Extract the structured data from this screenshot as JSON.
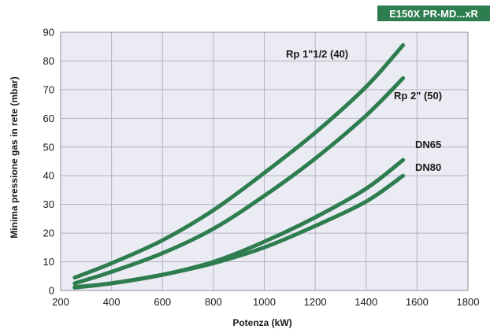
{
  "badge": {
    "text": "E150X PR-MD...xR",
    "color": "#2e7d4f"
  },
  "chart_data": {
    "type": "line",
    "title": "",
    "xlabel": "Potenza (kW)",
    "ylabel": "Minima pressione gas in rete (mbar)",
    "xlim": [
      200,
      1800
    ],
    "ylim": [
      0,
      90
    ],
    "xticks": [
      200,
      400,
      600,
      800,
      1000,
      1200,
      1400,
      1600,
      1800
    ],
    "yticks": [
      0,
      10,
      20,
      30,
      40,
      50,
      60,
      70,
      80,
      90
    ],
    "grid": true,
    "line_color": "#2e7d4f",
    "series": [
      {
        "name": "Rp 1\"1/2 (40)",
        "x": [
          255,
          400,
          600,
          800,
          1000,
          1200,
          1400,
          1545
        ],
        "y": [
          4.5,
          9.5,
          17.5,
          28,
          41,
          55,
          71,
          85.5
        ]
      },
      {
        "name": "Rp 2\" (50)",
        "x": [
          255,
          400,
          600,
          800,
          1000,
          1200,
          1400,
          1545
        ],
        "y": [
          2.5,
          6.5,
          13,
          21.5,
          33,
          46,
          61,
          74
        ]
      },
      {
        "name": "DN65",
        "x": [
          255,
          400,
          600,
          800,
          1000,
          1200,
          1400,
          1545
        ],
        "y": [
          1.2,
          2.5,
          5.5,
          10,
          17,
          25.5,
          35.5,
          45.5
        ]
      },
      {
        "name": "DN80",
        "x": [
          255,
          400,
          600,
          800,
          1000,
          1200,
          1400,
          1545
        ],
        "y": [
          1,
          2.5,
          5.5,
          9.5,
          15,
          22.5,
          31,
          40
        ]
      }
    ]
  }
}
